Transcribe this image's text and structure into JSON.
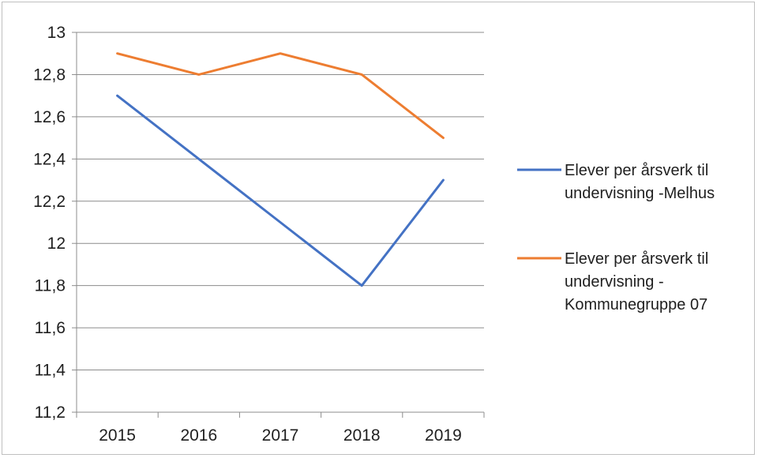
{
  "chart_data": {
    "type": "line",
    "x": [
      "2015",
      "2016",
      "2017",
      "2018",
      "2019"
    ],
    "ylim": [
      11.2,
      13
    ],
    "y_ticks": [
      "11,2",
      "11,4",
      "11,6",
      "11,8",
      "12",
      "12,2",
      "12,4",
      "12,6",
      "12,8",
      "13"
    ],
    "y_tick_values": [
      11.2,
      11.4,
      11.6,
      11.8,
      12.0,
      12.2,
      12.4,
      12.6,
      12.8,
      13.0
    ],
    "grid": "horizontal",
    "legend_position": "right",
    "series": [
      {
        "name": "Elever per årsverk til undervisning -Melhus",
        "legend_lines": [
          "Elever per årsverk til",
          "undervisning -Melhus"
        ],
        "color": "#4472c4",
        "values": [
          12.7,
          12.4,
          12.1,
          11.8,
          12.3
        ]
      },
      {
        "name": "Elever per årsverk til undervisning - Kommunegruppe 07",
        "legend_lines": [
          "Elever per årsverk til",
          "undervisning -",
          "Kommunegruppe 07"
        ],
        "color": "#ed7d31",
        "values": [
          12.9,
          12.8,
          12.9,
          12.8,
          12.5
        ]
      }
    ]
  }
}
